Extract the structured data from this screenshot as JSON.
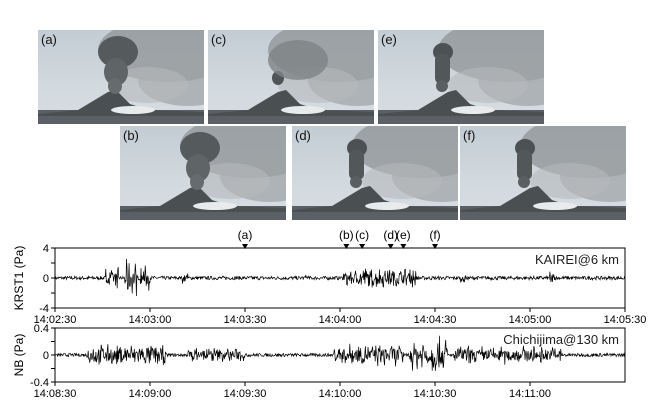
{
  "photos": [
    {
      "label": "(a)",
      "plume": "large"
    },
    {
      "label": "(c)",
      "plume": "small"
    },
    {
      "label": "(e)",
      "plume": "column"
    },
    {
      "label": "(b)",
      "plume": "large"
    },
    {
      "label": "(d)",
      "plume": "column"
    },
    {
      "label": "(f)",
      "plume": "column"
    }
  ],
  "chart_data": [
    {
      "type": "line",
      "station_label": "KAIREI@6 km",
      "ylabel": "KRST1 (Pa)",
      "xlim": [
        "14:02:30",
        "14:05:30"
      ],
      "ylim": [
        -4,
        4
      ],
      "x_ticks": [
        "14:02:30",
        "14:03:00",
        "14:03:30",
        "14:04:00",
        "14:04:30",
        "14:05:00",
        "14:05:30"
      ],
      "y_ticks": [
        "4",
        "2",
        "0",
        "-2",
        "-4"
      ],
      "markers": [
        {
          "label": "(a)",
          "time": "14:03:30"
        },
        {
          "label": "(b)",
          "time": "14:04:02"
        },
        {
          "label": "(c)",
          "time": "14:04:07"
        },
        {
          "label": "(d)",
          "time": "14:04:16"
        },
        {
          "label": "(e)",
          "time": "14:04:20"
        },
        {
          "label": "(f)",
          "time": "14:04:30"
        }
      ],
      "bursts": [
        {
          "start": "14:02:46",
          "end": "14:02:50",
          "peak": 1.6
        },
        {
          "start": "14:02:52",
          "end": "14:02:56",
          "peak": 2.6
        },
        {
          "start": "14:02:57",
          "end": "14:03:00",
          "peak": 2.0
        },
        {
          "start": "14:03:10",
          "end": "14:03:12",
          "peak": 0.8
        },
        {
          "start": "14:03:48",
          "end": "14:03:50",
          "peak": 0.6
        },
        {
          "start": "14:04:01",
          "end": "14:04:24",
          "peak": 1.5
        },
        {
          "start": "14:04:38",
          "end": "14:04:40",
          "peak": 0.7
        },
        {
          "start": "14:05:06",
          "end": "14:05:08",
          "peak": 1.0
        }
      ]
    },
    {
      "type": "line",
      "station_label": "Chichijima@130 km",
      "ylabel": "NB (Pa)",
      "xlim": [
        "14:08:30",
        "14:11:30"
      ],
      "ylim": [
        -0.4,
        0.4
      ],
      "x_ticks": [
        "14:08:30",
        "14:09:00",
        "14:09:30",
        "14:10:00",
        "14:10:30",
        "14:11:00"
      ],
      "y_ticks": [
        "0.4",
        "0.2",
        "0",
        "-0.2",
        "-0.4"
      ],
      "bursts": [
        {
          "start": "14:08:40",
          "end": "14:09:05",
          "peak": 0.18
        },
        {
          "start": "14:09:12",
          "end": "14:09:30",
          "peak": 0.12
        },
        {
          "start": "14:09:58",
          "end": "14:10:20",
          "peak": 0.18
        },
        {
          "start": "14:10:22",
          "end": "14:10:34",
          "peak": 0.3
        },
        {
          "start": "14:10:36",
          "end": "14:11:10",
          "peak": 0.15
        }
      ]
    }
  ]
}
